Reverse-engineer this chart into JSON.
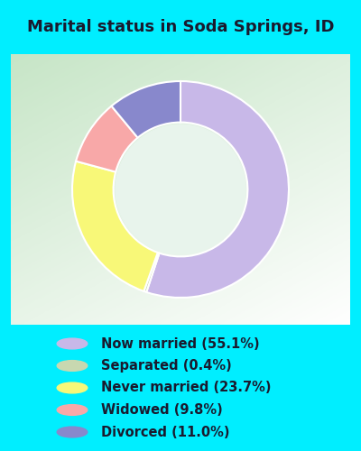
{
  "title": "Marital status in Soda Springs, ID",
  "title_fontsize": 13,
  "title_color": "#1a1a2e",
  "bg_cyan": "#00EEFF",
  "bg_chart_color1": "#c8e6c8",
  "bg_chart_color2": "#f0faf0",
  "slices": [
    {
      "label": "Now married (55.1%)",
      "value": 55.1,
      "color": "#c8b8e8"
    },
    {
      "label": "Separated (0.4%)",
      "value": 0.4,
      "color": "#c8d8b0"
    },
    {
      "label": "Never married (23.7%)",
      "value": 23.7,
      "color": "#f8f878"
    },
    {
      "label": "Widowed (9.8%)",
      "value": 9.8,
      "color": "#f8a8a8"
    },
    {
      "label": "Divorced (11.0%)",
      "value": 11.0,
      "color": "#8888cc"
    }
  ],
  "legend_colors": [
    "#c8b8e8",
    "#c8d8b0",
    "#f8f878",
    "#f8a8a8",
    "#8888cc"
  ],
  "legend_text_color": "#1a1a2e",
  "legend_fontsize": 10.5,
  "donut_width": 0.38,
  "start_angle": 90,
  "edge_color": "white",
  "edge_width": 1.5,
  "inner_bg": "#e8f4ec"
}
